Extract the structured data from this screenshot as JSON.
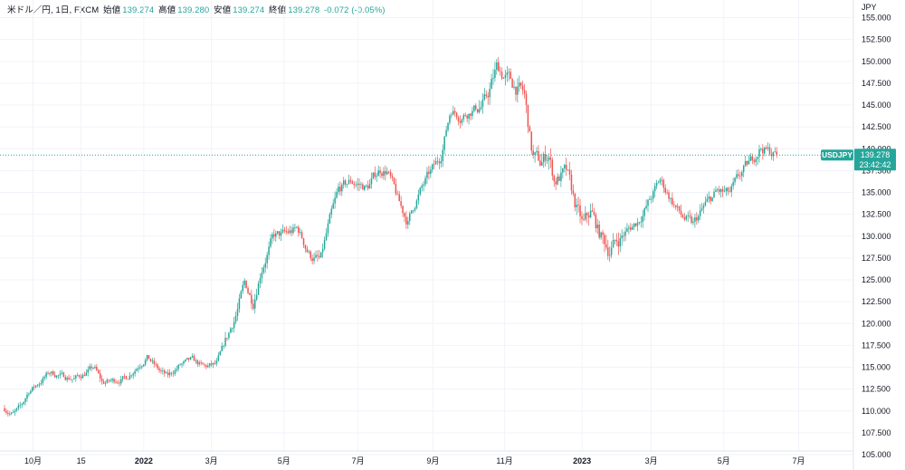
{
  "header": {
    "symbol_label": "米ドル／円, 1日, FXCM",
    "open_label": "始値",
    "open_value": "139.274",
    "high_label": "高値",
    "high_value": "139.280",
    "low_label": "安値",
    "low_value": "139.274",
    "close_label": "終値",
    "close_value": "139.278",
    "change_value": "-0.072 (-0.05%)"
  },
  "price_axis": {
    "currency": "JPY"
  },
  "last_price": {
    "symbol": "USDJPY",
    "price": "139.278",
    "countdown": "23:42:42"
  },
  "colors": {
    "up": "#26a69a",
    "down": "#ef5350",
    "grid": "#f0f3fa",
    "price_line": "#26a69a"
  },
  "chart_data": {
    "type": "candlestick",
    "title": "米ドル／円, 1日, FXCM",
    "ylabel": "JPY",
    "ylim": [
      105,
      156.5
    ],
    "yticks": [
      105,
      107.5,
      110,
      112.5,
      115,
      117.5,
      120,
      122.5,
      125,
      127.5,
      130,
      132.5,
      135,
      137.5,
      140,
      142.5,
      145,
      147.5,
      150,
      152.5,
      155
    ],
    "x_ticks": [
      {
        "label": "10月",
        "t": 0.035
      },
      {
        "label": "15",
        "t": 0.094
      },
      {
        "label": "2022",
        "t": 0.171
      },
      {
        "label": "3月",
        "t": 0.254
      },
      {
        "label": "5月",
        "t": 0.343
      },
      {
        "label": "7月",
        "t": 0.434
      },
      {
        "label": "9月",
        "t": 0.526
      },
      {
        "label": "11月",
        "t": 0.614
      },
      {
        "label": "2023",
        "t": 0.709
      },
      {
        "label": "3月",
        "t": 0.794
      },
      {
        "label": "5月",
        "t": 0.883
      },
      {
        "label": "7月",
        "t": 0.975
      }
    ],
    "key_points": [
      [
        0.0,
        110.3
      ],
      [
        0.01,
        109.6
      ],
      [
        0.02,
        110.4
      ],
      [
        0.03,
        112.3
      ],
      [
        0.04,
        113.0
      ],
      [
        0.055,
        114.4
      ],
      [
        0.07,
        114.0
      ],
      [
        0.085,
        113.7
      ],
      [
        0.095,
        114.1
      ],
      [
        0.11,
        115.0
      ],
      [
        0.12,
        113.2
      ],
      [
        0.135,
        113.5
      ],
      [
        0.15,
        113.8
      ],
      [
        0.16,
        114.8
      ],
      [
        0.175,
        116.2
      ],
      [
        0.19,
        114.6
      ],
      [
        0.2,
        113.9
      ],
      [
        0.215,
        115.2
      ],
      [
        0.23,
        115.8
      ],
      [
        0.245,
        115.0
      ],
      [
        0.26,
        115.3
      ],
      [
        0.275,
        118.8
      ],
      [
        0.285,
        121.3
      ],
      [
        0.295,
        124.6
      ],
      [
        0.305,
        122.4
      ],
      [
        0.315,
        126.2
      ],
      [
        0.33,
        129.9
      ],
      [
        0.345,
        130.2
      ],
      [
        0.36,
        130.8
      ],
      [
        0.375,
        127.8
      ],
      [
        0.388,
        127.2
      ],
      [
        0.398,
        131.3
      ],
      [
        0.41,
        135.2
      ],
      [
        0.425,
        136.3
      ],
      [
        0.445,
        135.5
      ],
      [
        0.46,
        137.6
      ],
      [
        0.47,
        137.5
      ],
      [
        0.485,
        133.6
      ],
      [
        0.495,
        131.6
      ],
      [
        0.505,
        134.1
      ],
      [
        0.52,
        136.8
      ],
      [
        0.535,
        139.0
      ],
      [
        0.548,
        144.6
      ],
      [
        0.56,
        143.7
      ],
      [
        0.575,
        144.5
      ],
      [
        0.59,
        145.2
      ],
      [
        0.605,
        149.4
      ],
      [
        0.615,
        148.2
      ],
      [
        0.625,
        147.3
      ],
      [
        0.638,
        146.2
      ],
      [
        0.648,
        139.2
      ],
      [
        0.658,
        138.3
      ],
      [
        0.668,
        139.5
      ],
      [
        0.675,
        136.4
      ],
      [
        0.69,
        137.2
      ],
      [
        0.7,
        133.8
      ],
      [
        0.71,
        131.1
      ],
      [
        0.72,
        132.8
      ],
      [
        0.73,
        130.3
      ],
      [
        0.742,
        128.5
      ],
      [
        0.76,
        130.2
      ],
      [
        0.778,
        131.8
      ],
      [
        0.79,
        133.7
      ],
      [
        0.805,
        136.4
      ],
      [
        0.818,
        134.3
      ],
      [
        0.83,
        132.4
      ],
      [
        0.845,
        131.2
      ],
      [
        0.86,
        133.5
      ],
      [
        0.875,
        135.1
      ],
      [
        0.89,
        134.8
      ],
      [
        0.905,
        137.2
      ],
      [
        0.918,
        138.8
      ],
      [
        0.928,
        140.2
      ],
      [
        0.938,
        139.7
      ],
      [
        0.948,
        139.3
      ]
    ]
  }
}
